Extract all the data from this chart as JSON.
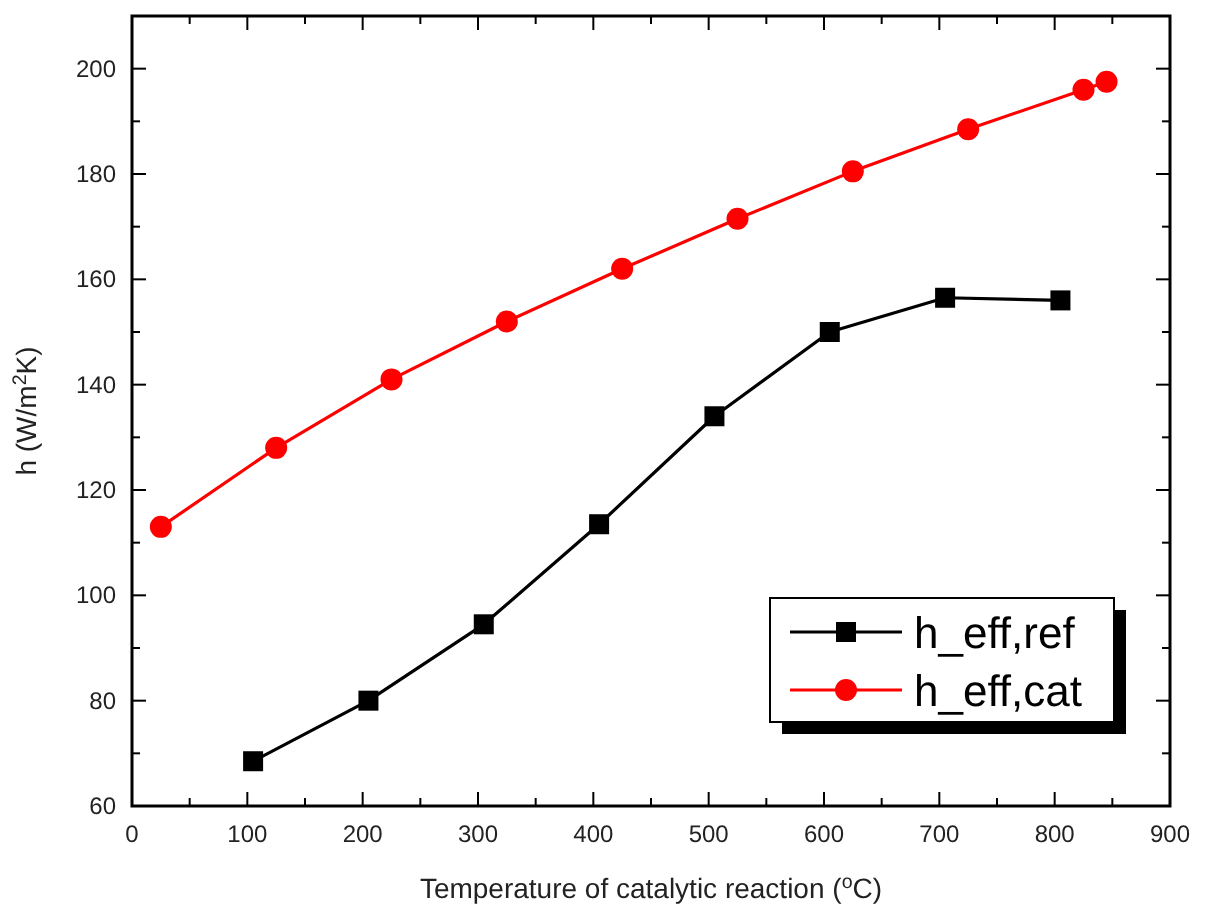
{
  "chart_data": {
    "type": "line",
    "xlabel": "Temperature of catalytic reaction ($^{o}$C)",
    "ylabel": "h (W/m$^{2}$K)",
    "xlim": [
      0,
      900
    ],
    "ylim": [
      60,
      210
    ],
    "xticks": [
      0,
      {
        "value": 50,
        "label": null
      },
      100,
      {
        "value": 150,
        "label": null
      },
      200,
      {
        "value": 250,
        "label": null
      },
      300,
      {
        "value": 350,
        "label": null
      },
      400,
      {
        "value": 450,
        "label": null
      },
      500,
      {
        "value": 550,
        "label": null
      },
      600,
      {
        "value": 650,
        "label": null
      },
      700,
      {
        "value": 750,
        "label": null
      },
      800,
      {
        "value": 850,
        "label": null
      },
      900
    ],
    "yticks": [
      60,
      {
        "value": 70,
        "label": null
      },
      80,
      {
        "value": 90,
        "label": null
      },
      100,
      {
        "value": 110,
        "label": null
      },
      120,
      {
        "value": 130,
        "label": null
      },
      140,
      {
        "value": 150,
        "label": null
      },
      160,
      {
        "value": 170,
        "label": null
      },
      180,
      {
        "value": 190,
        "label": null
      },
      200
    ],
    "grid": false,
    "legend": "bottom right",
    "line_style": "solid",
    "series": [
      {
        "name": "h_eff,ref",
        "color": "#000000",
        "marker": "square",
        "x": [
          105,
          205,
          305,
          405,
          505,
          605,
          705,
          805
        ],
        "values": [
          68.5,
          80,
          94.5,
          113.5,
          134,
          150,
          156.5,
          156
        ]
      },
      {
        "name": "h_eff,cat",
        "color": "#ff0000",
        "marker": "circle",
        "x": [
          25,
          125,
          225,
          325,
          425,
          525,
          625,
          725,
          825,
          845
        ],
        "values": [
          113,
          128,
          141,
          152,
          162,
          171.5,
          180.5,
          188.5,
          196,
          197.5
        ]
      }
    ]
  }
}
